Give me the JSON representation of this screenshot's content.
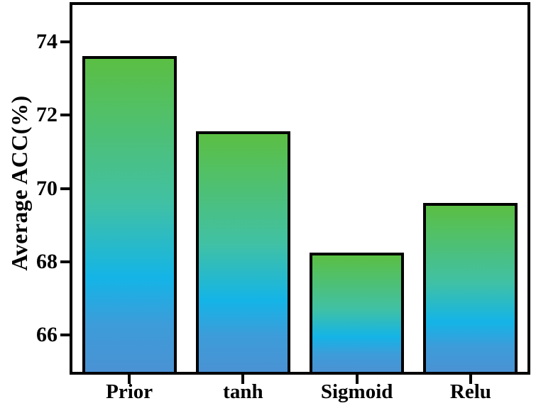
{
  "chart_data": {
    "type": "bar",
    "categories": [
      "Prior",
      "tanh",
      "Sigmoid",
      "Relu"
    ],
    "values": [
      73.6,
      71.55,
      68.25,
      69.6
    ],
    "title": "",
    "xlabel": "",
    "ylabel": "Average ACC(%)",
    "ylim": [
      65,
      75
    ],
    "yticks": [
      66,
      68,
      70,
      72,
      74
    ],
    "grid": false,
    "legend": false,
    "bar_gradient_stops": [
      {
        "pos": 0,
        "color": "#5bbf43"
      },
      {
        "pos": 0.46,
        "color": "#41c1a4"
      },
      {
        "pos": 0.7,
        "color": "#14b4e7"
      },
      {
        "pos": 0.85,
        "color": "#3d9cd9"
      },
      {
        "pos": 1,
        "color": "#4a92d3"
      }
    ],
    "bar_border_color": "#000000",
    "axis_color": "#000000",
    "background_color": "#ffffff",
    "text_color": "#000000"
  }
}
